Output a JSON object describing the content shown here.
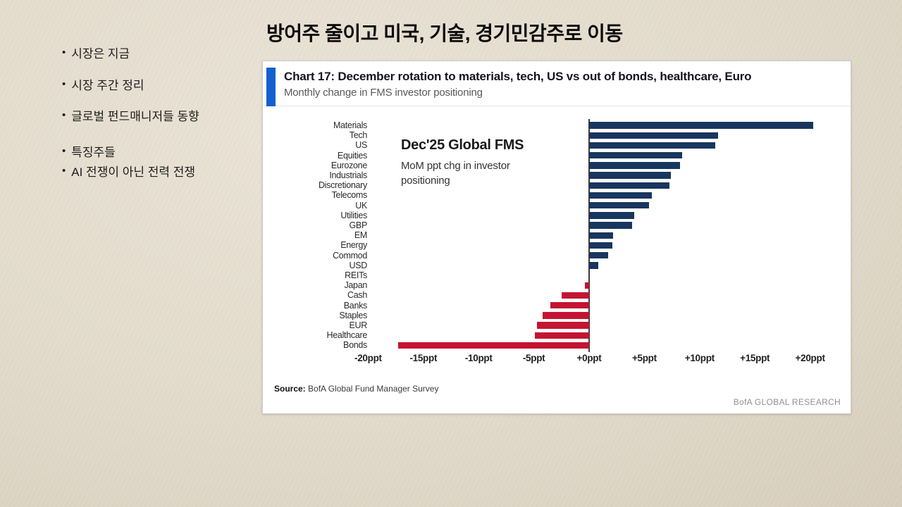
{
  "slide": {
    "title": "방어주 줄이고 미국, 기술, 경기민감주로 이동",
    "sidebar": {
      "items": [
        "시장은 지금",
        "시장 주간 정리",
        "글로벌 펀드매니저들 동향",
        "특징주들",
        "AI 전쟁이 아닌 전력 전쟁"
      ]
    }
  },
  "chart_card": {
    "title": "Chart 17: December rotation to materials, tech, US vs out of bonds, healthcare, Euro",
    "subtitle": "Monthly change in FMS investor positioning",
    "annotation_title": "Dec'25 Global FMS",
    "annotation_subtitle": "MoM ppt chg in investor positioning",
    "source_label": "Source:",
    "source_text": "BofA Global Fund Manager Survey",
    "brand": "BofA GLOBAL RESEARCH",
    "accent_color": "#1560d0",
    "positive_color": "#18365e",
    "negative_color": "#c41431"
  },
  "chart_data": {
    "type": "bar",
    "orientation": "horizontal",
    "title": "Chart 17: December rotation to materials, tech, US vs out of bonds, healthcare, Euro",
    "subtitle": "Monthly change in FMS investor positioning",
    "unit": "ppt",
    "xlim": [
      -22,
      21
    ],
    "grid": false,
    "legend": "none",
    "categories": [
      "Materials",
      "Tech",
      "US",
      "Equities",
      "Eurozone",
      "Industrials",
      "Discretionary",
      "Telecoms",
      "UK",
      "Utilities",
      "GBP",
      "EM",
      "Energy",
      "Commod",
      "USD",
      "REITs",
      "Japan",
      "Cash",
      "Banks",
      "Staples",
      "EUR",
      "Healthcare",
      "Bonds"
    ],
    "values": [
      20.3,
      11.7,
      11.4,
      8.4,
      8.2,
      7.4,
      7.3,
      5.7,
      5.4,
      4.1,
      3.9,
      2.2,
      2.1,
      1.7,
      0.8,
      0.0,
      -0.4,
      -2.5,
      -3.5,
      -4.2,
      -4.7,
      -4.9,
      -17.3
    ],
    "ticks": [
      {
        "label": "-20ppt",
        "v": -20
      },
      {
        "label": "-15ppt",
        "v": -15
      },
      {
        "label": "-10ppt",
        "v": -10
      },
      {
        "label": "-5ppt",
        "v": -5
      },
      {
        "label": "+0ppt",
        "v": 0
      },
      {
        "label": "+5ppt",
        "v": 5
      },
      {
        "label": "+10ppt",
        "v": 10
      },
      {
        "label": "+15ppt",
        "v": 15
      },
      {
        "label": "+20ppt",
        "v": 20
      }
    ]
  }
}
